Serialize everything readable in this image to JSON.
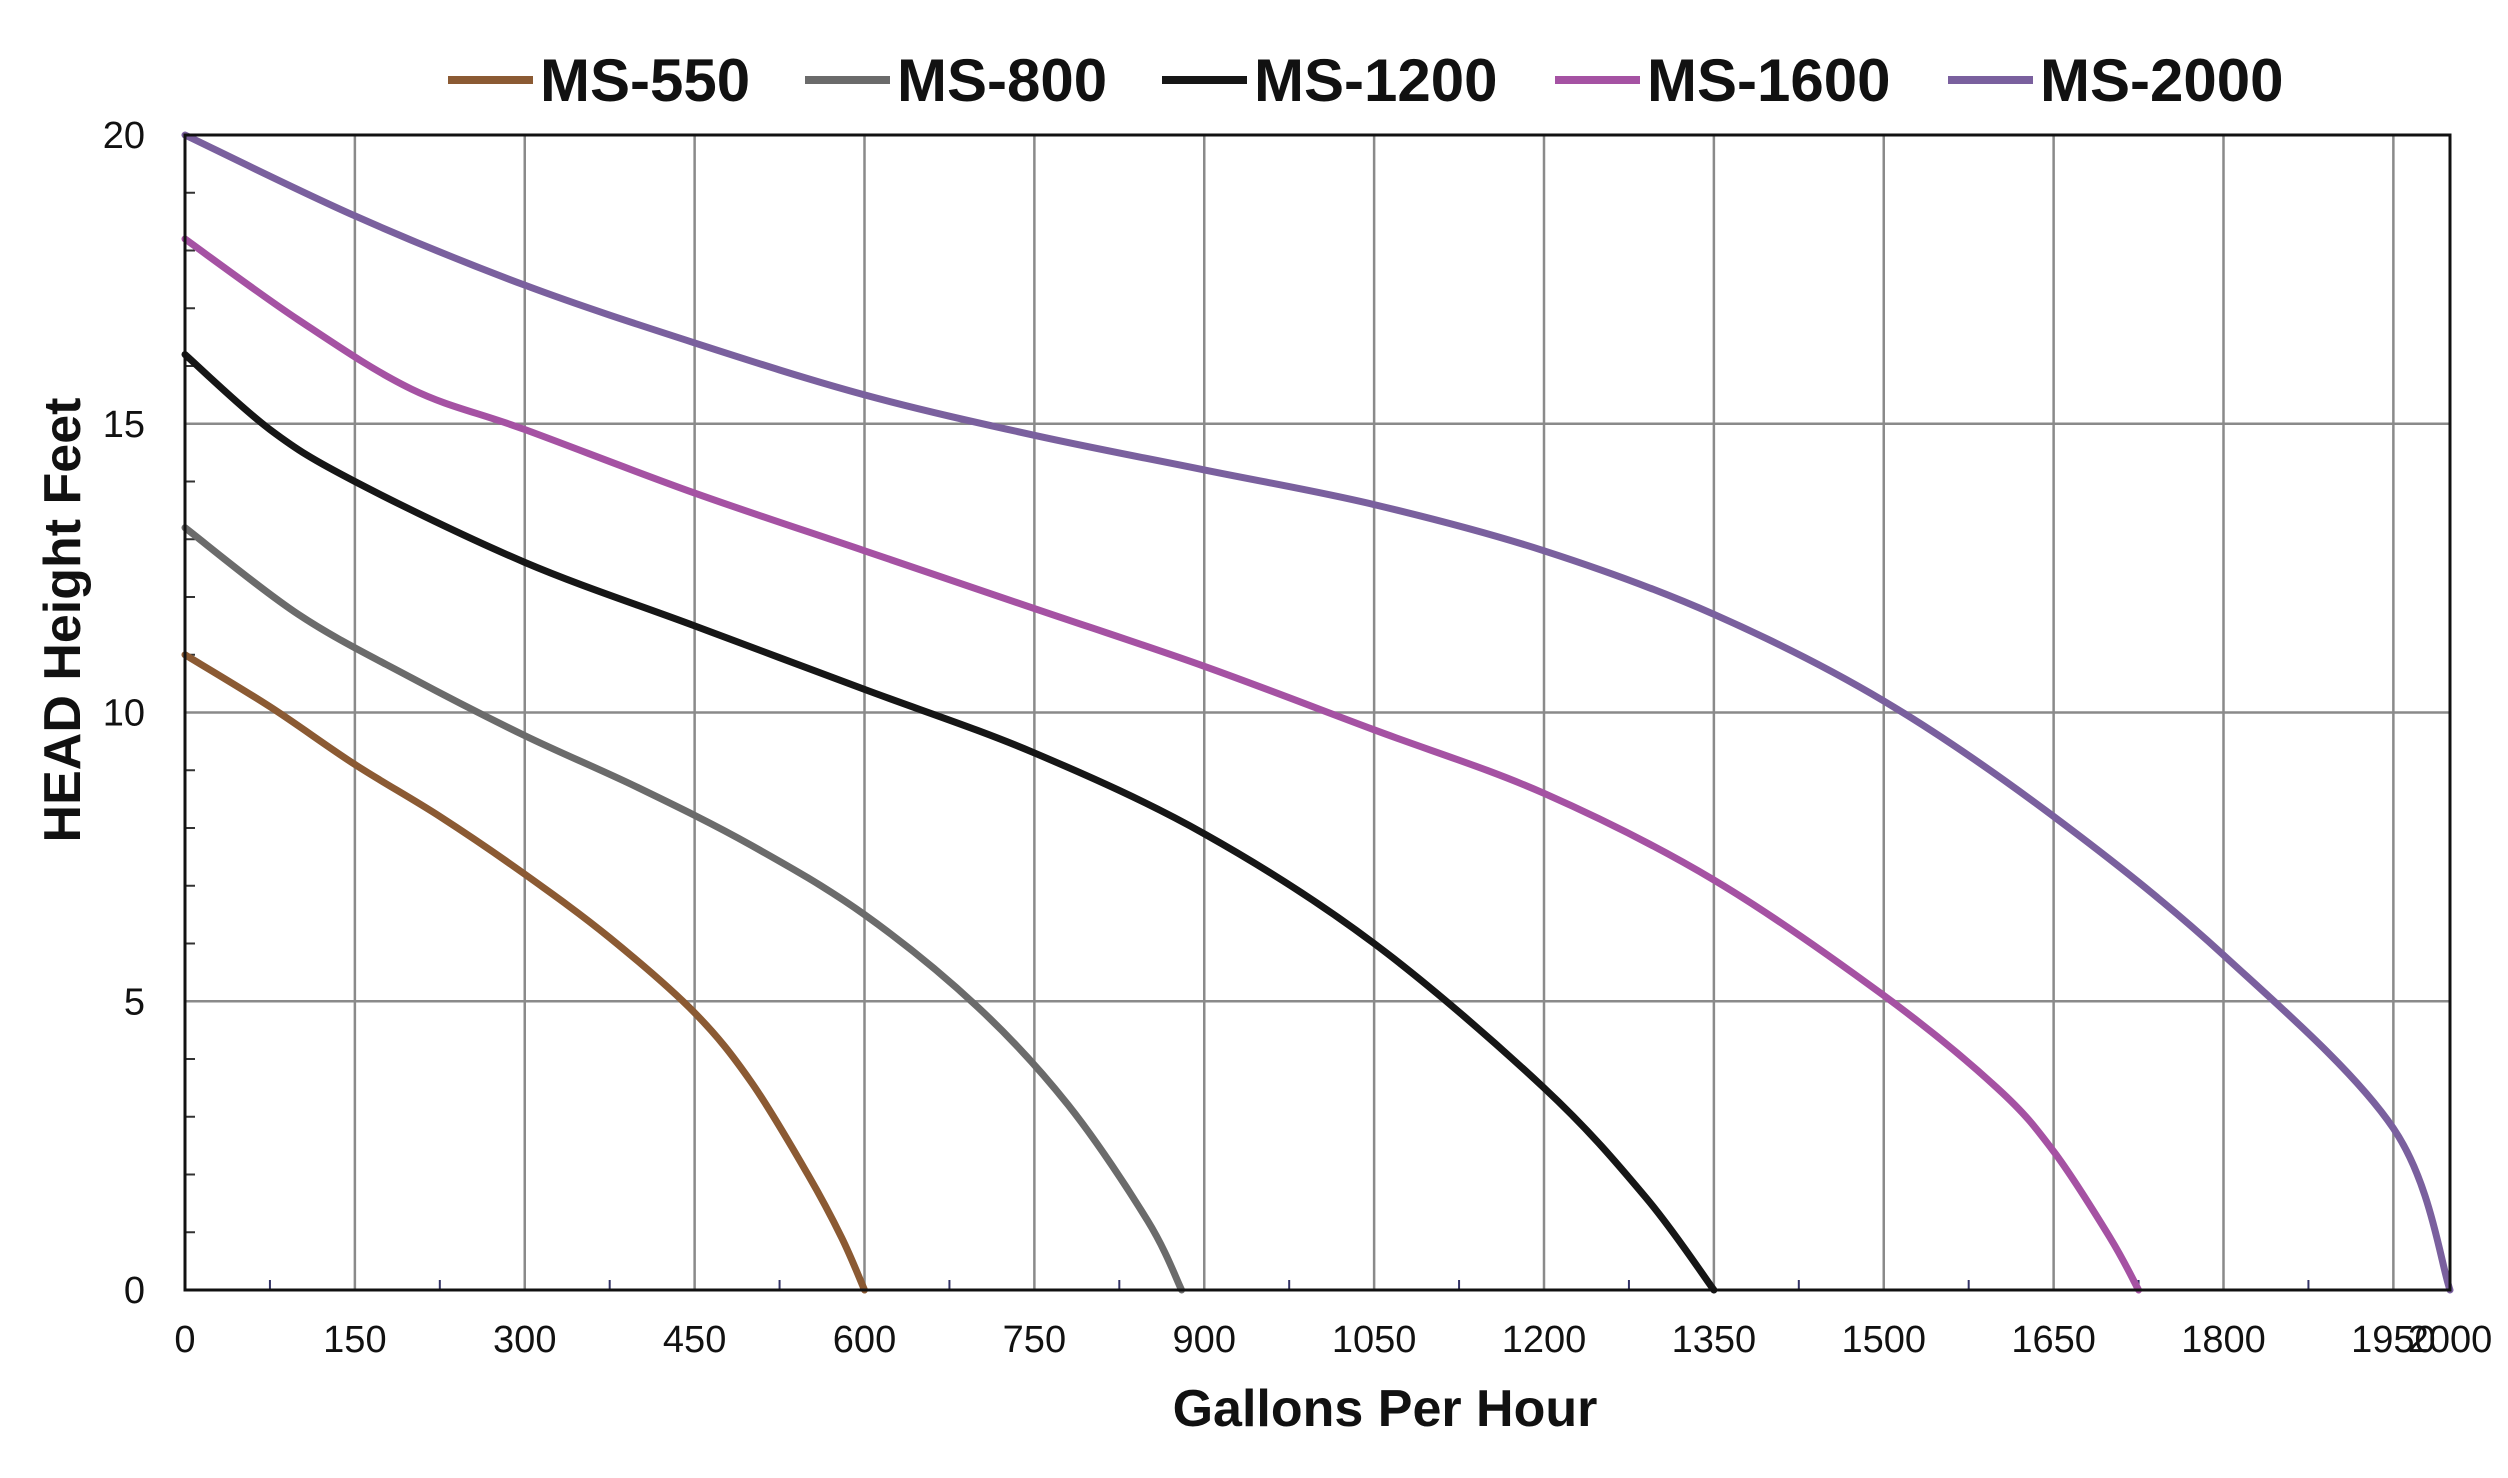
{
  "chart_data": {
    "type": "line",
    "title": "",
    "xlabel": "Gallons Per Hour",
    "ylabel": "HEAD Height Feet",
    "xlim": [
      0,
      2000
    ],
    "ylim": [
      0,
      20
    ],
    "x_ticks": [
      0,
      150,
      300,
      450,
      600,
      750,
      900,
      1050,
      1200,
      1350,
      1500,
      1650,
      1800,
      1950,
      2000
    ],
    "y_ticks": [
      0,
      5,
      10,
      15,
      20
    ],
    "grid": true,
    "legend_position": "top",
    "series": [
      {
        "name": "MS-550",
        "color": "#8B5A33",
        "points": [
          [
            0,
            11.0
          ],
          [
            75,
            10.1
          ],
          [
            150,
            9.1
          ],
          [
            225,
            8.2
          ],
          [
            300,
            7.2
          ],
          [
            375,
            6.1
          ],
          [
            450,
            4.8
          ],
          [
            500,
            3.6
          ],
          [
            550,
            2.0
          ],
          [
            580,
            0.9
          ],
          [
            600,
            0.0
          ]
        ]
      },
      {
        "name": "MS-800",
        "color": "#6B6B6B",
        "points": [
          [
            0,
            13.2
          ],
          [
            100,
            11.7
          ],
          [
            200,
            10.6
          ],
          [
            300,
            9.6
          ],
          [
            400,
            8.7
          ],
          [
            500,
            7.7
          ],
          [
            600,
            6.5
          ],
          [
            700,
            4.9
          ],
          [
            780,
            3.2
          ],
          [
            850,
            1.2
          ],
          [
            880,
            0.0
          ]
        ]
      },
      {
        "name": "MS-1200",
        "color": "#161616",
        "points": [
          [
            0,
            16.2
          ],
          [
            75,
            14.9
          ],
          [
            150,
            14.0
          ],
          [
            300,
            12.6
          ],
          [
            450,
            11.5
          ],
          [
            600,
            10.4
          ],
          [
            750,
            9.3
          ],
          [
            900,
            7.9
          ],
          [
            1050,
            6.0
          ],
          [
            1200,
            3.5
          ],
          [
            1290,
            1.6
          ],
          [
            1350,
            0.0
          ]
        ]
      },
      {
        "name": "MS-1600",
        "color": "#A552A3",
        "points": [
          [
            0,
            18.2
          ],
          [
            100,
            16.8
          ],
          [
            200,
            15.6
          ],
          [
            300,
            14.9
          ],
          [
            450,
            13.8
          ],
          [
            600,
            12.8
          ],
          [
            750,
            11.8
          ],
          [
            900,
            10.8
          ],
          [
            1050,
            9.7
          ],
          [
            1200,
            8.6
          ],
          [
            1350,
            7.1
          ],
          [
            1500,
            5.1
          ],
          [
            1600,
            3.5
          ],
          [
            1650,
            2.4
          ],
          [
            1700,
            0.9
          ],
          [
            1725,
            0.0
          ]
        ]
      },
      {
        "name": "MS-2000",
        "color": "#7A609E",
        "points": [
          [
            0,
            20.0
          ],
          [
            150,
            18.6
          ],
          [
            300,
            17.4
          ],
          [
            450,
            16.4
          ],
          [
            600,
            15.5
          ],
          [
            750,
            14.8
          ],
          [
            900,
            14.2
          ],
          [
            1050,
            13.6
          ],
          [
            1200,
            12.8
          ],
          [
            1350,
            11.7
          ],
          [
            1500,
            10.2
          ],
          [
            1650,
            8.2
          ],
          [
            1800,
            5.8
          ],
          [
            1950,
            2.8
          ],
          [
            2000,
            0.0
          ]
        ]
      }
    ]
  }
}
